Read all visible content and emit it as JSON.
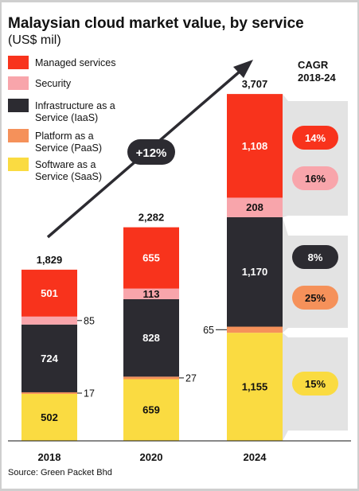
{
  "chart_data": {
    "type": "bar",
    "stacked": true,
    "title": "Malaysian cloud market value, by service",
    "subtitle": "(US$ mil)",
    "categories": [
      "2018",
      "2020",
      "2024"
    ],
    "totals": [
      "1,829",
      "2,282",
      "3,707"
    ],
    "series": [
      {
        "name": "Software as a Service (SaaS)",
        "color": "#fadb41",
        "values": [
          502,
          659,
          1155
        ],
        "labels": [
          "502",
          "659",
          "1,155"
        ]
      },
      {
        "name": "Platform as a Service (PaaS)",
        "color": "#f5915a",
        "values": [
          17,
          27,
          65
        ],
        "labels": [
          "17",
          "27",
          "65"
        ]
      },
      {
        "name": "Infrastructure as a Service (IaaS)",
        "color": "#2c2b31",
        "values": [
          724,
          828,
          1170
        ],
        "labels": [
          "724",
          "828",
          "1,170"
        ]
      },
      {
        "name": "Security",
        "color": "#f8a5ab",
        "values": [
          85,
          113,
          208
        ],
        "labels": [
          "85",
          "113",
          "208"
        ]
      },
      {
        "name": "Managed services",
        "color": "#f8331c",
        "values": [
          501,
          655,
          1108
        ],
        "labels": [
          "501",
          "655",
          "1,108"
        ]
      }
    ],
    "legend": [
      {
        "lines": [
          "Managed services"
        ],
        "color": "#f8331c"
      },
      {
        "lines": [
          "Security"
        ],
        "color": "#f8a5ab"
      },
      {
        "lines": [
          "Infrastructure as a",
          "Service (IaaS)"
        ],
        "color": "#2c2b31"
      },
      {
        "lines": [
          "Platform as a",
          "Service (PaaS)"
        ],
        "color": "#f5915a"
      },
      {
        "lines": [
          "Software as a",
          "Service (SaaS)"
        ],
        "color": "#fadb41"
      }
    ],
    "legend_position": "top-left",
    "growth_label": "+12%",
    "cagr": {
      "title_lines": [
        "CAGR",
        "2018-24"
      ],
      "values": [
        {
          "label": "14%",
          "fill": "#f8331c",
          "text_color": "#ffffff"
        },
        {
          "label": "16%",
          "fill": "#f8a5ab",
          "text_color": "#111111"
        },
        {
          "label": "8%",
          "fill": "#2c2b31",
          "text_color": "#ffffff"
        },
        {
          "label": "25%",
          "fill": "#f5915a",
          "text_color": "#111111"
        },
        {
          "label": "15%",
          "fill": "#fadb41",
          "text_color": "#111111"
        }
      ]
    },
    "source": "Source: Green Packet Bhd",
    "grid": false,
    "ylim": [
      0,
      3707
    ]
  }
}
